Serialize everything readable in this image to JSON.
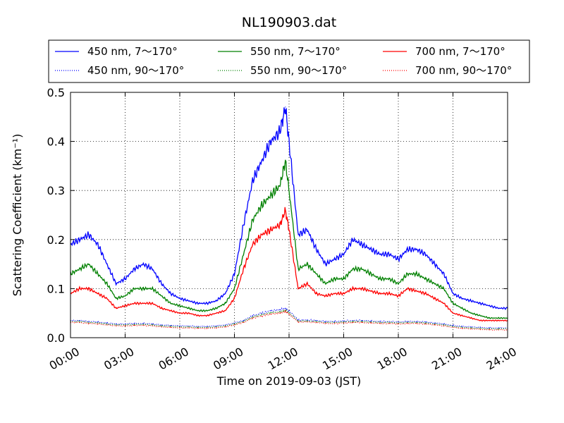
{
  "chart_data": {
    "type": "line",
    "title": "NL190903.dat",
    "xlabel": "Time on 2019-09-03 (JST)",
    "ylabel": "Scattering Coefficient (km⁻¹)",
    "xlim": [
      0,
      24
    ],
    "ylim": [
      0,
      0.5
    ],
    "xtick_labels": [
      "00:00",
      "03:00",
      "06:00",
      "09:00",
      "12:00",
      "15:00",
      "18:00",
      "21:00",
      "24:00"
    ],
    "ytick_labels": [
      "0.0",
      "0.1",
      "0.2",
      "0.3",
      "0.4",
      "0.5"
    ],
    "grid": true,
    "legend_position": "top",
    "x": [
      0,
      0.5,
      1,
      1.5,
      2,
      2.5,
      3,
      3.5,
      4,
      4.5,
      5,
      5.5,
      6,
      6.5,
      7,
      7.5,
      8,
      8.5,
      9,
      9.5,
      10,
      10.5,
      11,
      11.5,
      11.8,
      12,
      12.5,
      13,
      13.5,
      14,
      14.5,
      15,
      15.5,
      16,
      16.5,
      17,
      17.5,
      18,
      18.5,
      19,
      19.5,
      20,
      20.5,
      21,
      21.5,
      22,
      22.5,
      23,
      23.5,
      24
    ],
    "series": [
      {
        "name": "450 nm, 7～170°",
        "color": "#0000ff",
        "style": "solid",
        "values": [
          0.19,
          0.2,
          0.21,
          0.19,
          0.15,
          0.11,
          0.12,
          0.14,
          0.15,
          0.14,
          0.11,
          0.09,
          0.08,
          0.075,
          0.07,
          0.07,
          0.075,
          0.09,
          0.13,
          0.23,
          0.32,
          0.36,
          0.4,
          0.42,
          0.47,
          0.4,
          0.21,
          0.22,
          0.18,
          0.15,
          0.16,
          0.17,
          0.2,
          0.19,
          0.18,
          0.17,
          0.17,
          0.16,
          0.18,
          0.18,
          0.17,
          0.15,
          0.13,
          0.09,
          0.08,
          0.075,
          0.07,
          0.065,
          0.06,
          0.06
        ]
      },
      {
        "name": "550 nm, 7～170°",
        "color": "#008000",
        "style": "solid",
        "values": [
          0.13,
          0.14,
          0.15,
          0.13,
          0.11,
          0.08,
          0.085,
          0.1,
          0.1,
          0.1,
          0.085,
          0.07,
          0.065,
          0.06,
          0.055,
          0.055,
          0.06,
          0.07,
          0.1,
          0.17,
          0.24,
          0.27,
          0.29,
          0.31,
          0.36,
          0.3,
          0.14,
          0.15,
          0.13,
          0.11,
          0.12,
          0.12,
          0.14,
          0.14,
          0.13,
          0.12,
          0.12,
          0.11,
          0.13,
          0.13,
          0.12,
          0.11,
          0.1,
          0.07,
          0.06,
          0.05,
          0.045,
          0.04,
          0.04,
          0.04
        ]
      },
      {
        "name": "700 nm, 7～170°",
        "color": "#ff0000",
        "style": "solid",
        "values": [
          0.09,
          0.1,
          0.1,
          0.09,
          0.08,
          0.06,
          0.065,
          0.07,
          0.07,
          0.07,
          0.06,
          0.055,
          0.05,
          0.05,
          0.045,
          0.045,
          0.05,
          0.055,
          0.08,
          0.14,
          0.19,
          0.21,
          0.22,
          0.23,
          0.26,
          0.22,
          0.1,
          0.11,
          0.09,
          0.085,
          0.09,
          0.09,
          0.1,
          0.1,
          0.095,
          0.09,
          0.09,
          0.085,
          0.1,
          0.095,
          0.09,
          0.08,
          0.07,
          0.05,
          0.045,
          0.04,
          0.035,
          0.035,
          0.035,
          0.035
        ]
      },
      {
        "name": "450 nm, 90～170°",
        "color": "#0000ff",
        "style": "dotted",
        "values": [
          0.035,
          0.035,
          0.033,
          0.032,
          0.03,
          0.028,
          0.028,
          0.029,
          0.029,
          0.028,
          0.026,
          0.025,
          0.024,
          0.024,
          0.023,
          0.023,
          0.024,
          0.026,
          0.03,
          0.035,
          0.045,
          0.05,
          0.055,
          0.057,
          0.06,
          0.055,
          0.036,
          0.036,
          0.035,
          0.033,
          0.033,
          0.034,
          0.035,
          0.035,
          0.034,
          0.033,
          0.033,
          0.032,
          0.033,
          0.033,
          0.032,
          0.03,
          0.028,
          0.025,
          0.023,
          0.022,
          0.021,
          0.02,
          0.02,
          0.02
        ]
      },
      {
        "name": "550 nm, 90～170°",
        "color": "#008000",
        "style": "dotted",
        "values": [
          0.033,
          0.033,
          0.031,
          0.03,
          0.028,
          0.026,
          0.026,
          0.027,
          0.027,
          0.026,
          0.024,
          0.023,
          0.022,
          0.022,
          0.021,
          0.021,
          0.022,
          0.024,
          0.028,
          0.033,
          0.042,
          0.047,
          0.051,
          0.053,
          0.056,
          0.051,
          0.034,
          0.034,
          0.033,
          0.031,
          0.031,
          0.032,
          0.033,
          0.033,
          0.032,
          0.031,
          0.031,
          0.03,
          0.031,
          0.031,
          0.03,
          0.028,
          0.026,
          0.023,
          0.021,
          0.02,
          0.019,
          0.018,
          0.018,
          0.018
        ]
      },
      {
        "name": "700 nm, 90～170°",
        "color": "#ff0000",
        "style": "dotted",
        "values": [
          0.031,
          0.031,
          0.029,
          0.028,
          0.026,
          0.024,
          0.024,
          0.025,
          0.025,
          0.024,
          0.022,
          0.021,
          0.02,
          0.02,
          0.019,
          0.019,
          0.02,
          0.022,
          0.026,
          0.031,
          0.04,
          0.044,
          0.048,
          0.05,
          0.053,
          0.048,
          0.032,
          0.032,
          0.031,
          0.029,
          0.029,
          0.03,
          0.031,
          0.031,
          0.03,
          0.029,
          0.029,
          0.028,
          0.029,
          0.029,
          0.028,
          0.026,
          0.024,
          0.021,
          0.019,
          0.018,
          0.017,
          0.016,
          0.016,
          0.016
        ]
      }
    ]
  }
}
